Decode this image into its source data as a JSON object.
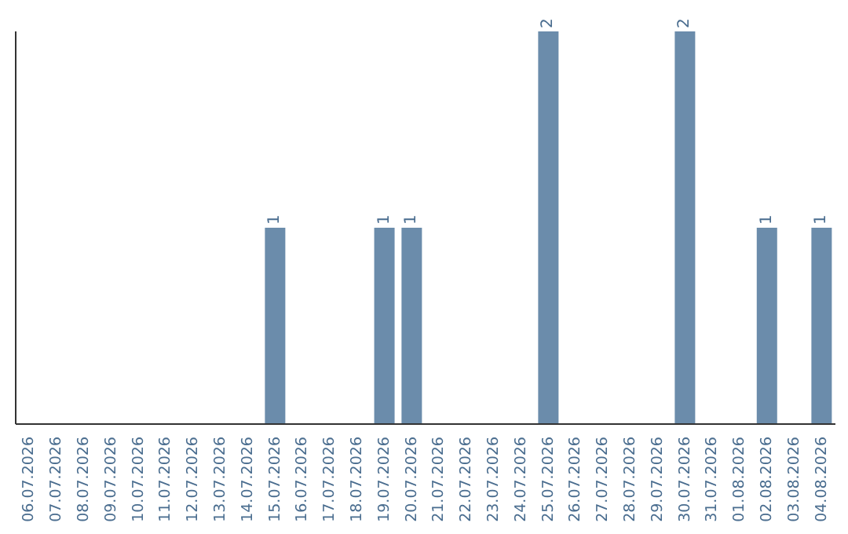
{
  "chart_data": {
    "type": "bar",
    "categories": [
      "06.07.2026",
      "07.07.2026",
      "08.07.2026",
      "09.07.2026",
      "10.07.2026",
      "11.07.2026",
      "12.07.2026",
      "13.07.2026",
      "14.07.2026",
      "15.07.2026",
      "16.07.2026",
      "17.07.2026",
      "18.07.2026",
      "19.07.2026",
      "20.07.2026",
      "21.07.2026",
      "22.07.2026",
      "23.07.2026",
      "24.07.2026",
      "25.07.2026",
      "26.07.2026",
      "27.07.2026",
      "28.07.2026",
      "29.07.2026",
      "30.07.2026",
      "31.07.2026",
      "01.08.2026",
      "02.08.2026",
      "03.08.2026",
      "04.08.2026"
    ],
    "values": [
      0,
      0,
      0,
      0,
      0,
      0,
      0,
      0,
      0,
      1,
      0,
      0,
      0,
      1,
      1,
      0,
      0,
      0,
      0,
      2,
      0,
      0,
      0,
      0,
      2,
      0,
      0,
      1,
      0,
      1
    ],
    "value_labels": [
      null,
      null,
      null,
      null,
      null,
      null,
      null,
      null,
      null,
      "1",
      null,
      null,
      null,
      "1",
      "1",
      null,
      null,
      null,
      null,
      "2",
      null,
      null,
      null,
      null,
      "2",
      null,
      null,
      "1",
      null,
      "1"
    ],
    "color": "#6b8cab",
    "tick_labels": "x",
    "grid": false,
    "legend": false
  }
}
